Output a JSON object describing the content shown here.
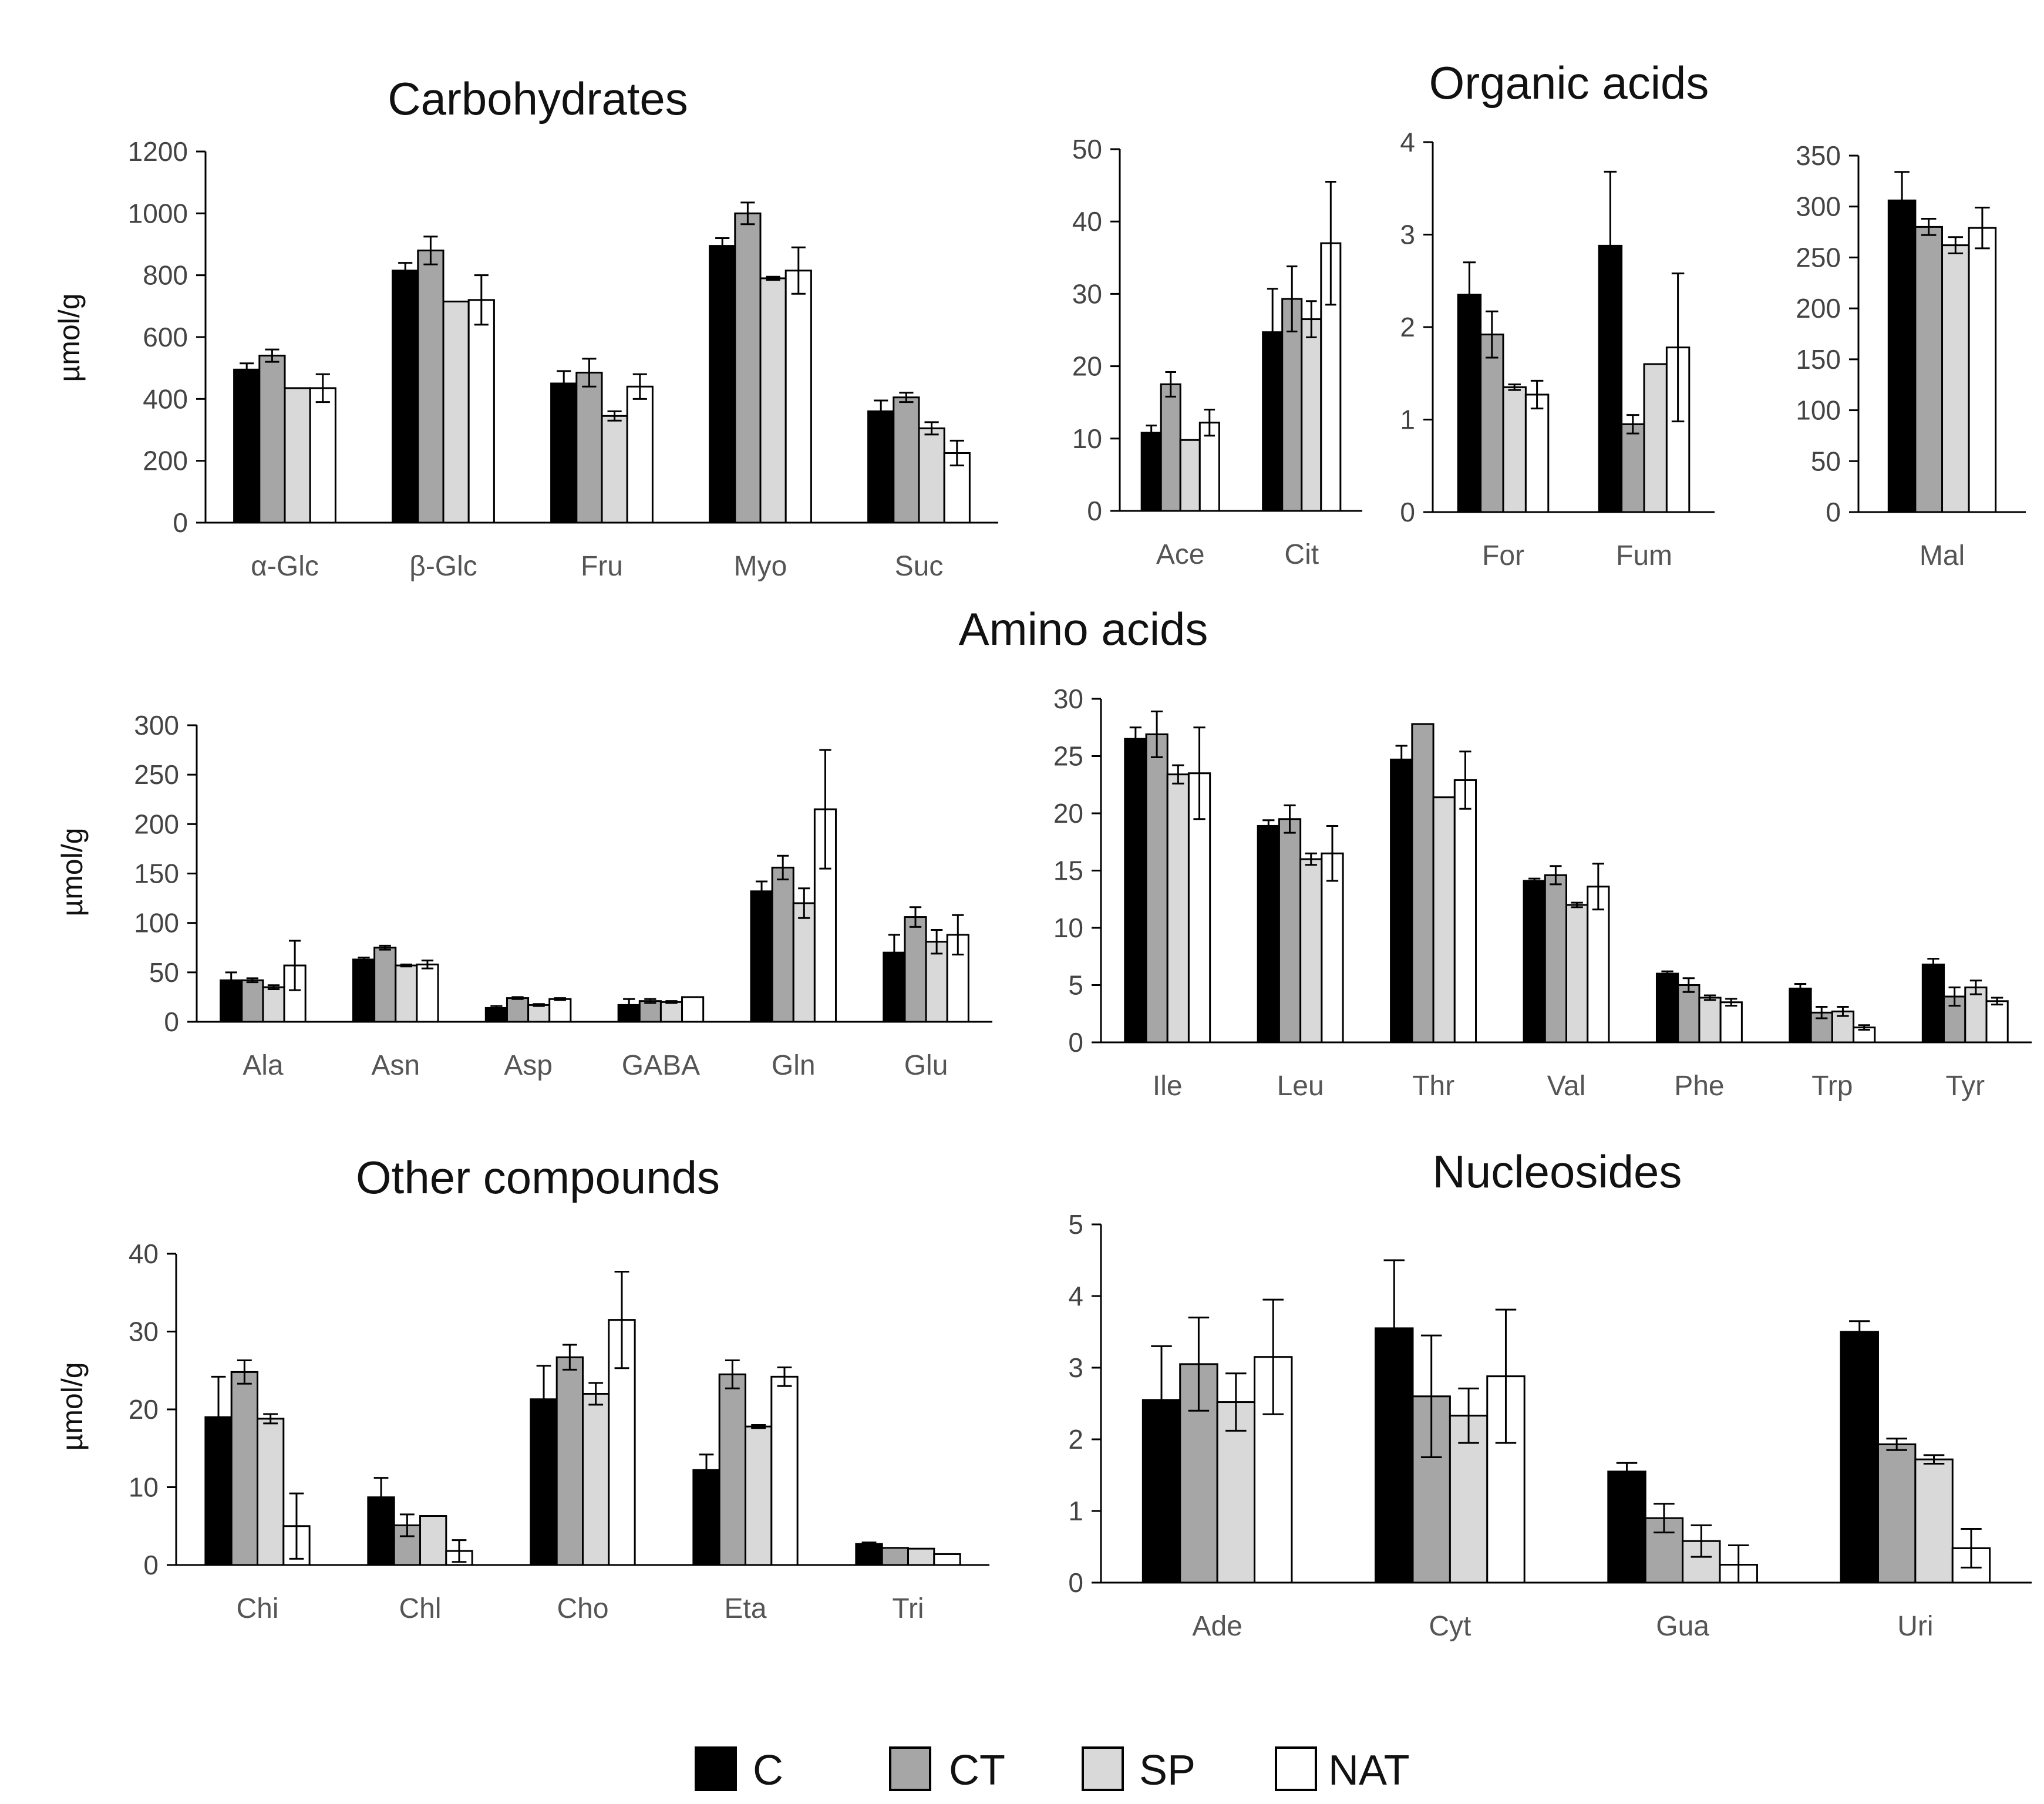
{
  "series_styles": [
    {
      "name": "C",
      "fill": "#000000"
    },
    {
      "name": "CT",
      "fill": "#a6a6a6"
    },
    {
      "name": "SP",
      "fill": "#d9d9d9"
    },
    {
      "name": "NAT",
      "fill": "#ffffff"
    }
  ],
  "section_titles": {
    "amino_acids": "Amino acids"
  },
  "legend": {
    "items": [
      "C",
      "CT",
      "SP",
      "NAT"
    ]
  },
  "chart_data": [
    {
      "id": "carbohydrates",
      "type": "bar",
      "title": "Carbohydrates",
      "ylabel": "µmol/g",
      "ylim": [
        0,
        1200
      ],
      "yticks": [
        0,
        200,
        400,
        600,
        800,
        1000,
        1200
      ],
      "categories": [
        "α-Glc",
        "β-Glc",
        "Fru",
        "Myo",
        "Suc"
      ],
      "series": [
        {
          "name": "C",
          "values": [
            495,
            815,
            450,
            895,
            360
          ],
          "errors": [
            20,
            25,
            40,
            25,
            35
          ]
        },
        {
          "name": "CT",
          "values": [
            540,
            880,
            485,
            1000,
            405
          ],
          "errors": [
            20,
            45,
            45,
            35,
            15
          ]
        },
        {
          "name": "SP",
          "values": [
            435,
            715,
            345,
            790,
            305
          ],
          "errors": [
            0,
            0,
            15,
            5,
            20
          ]
        },
        {
          "name": "NAT",
          "values": [
            435,
            720,
            440,
            815,
            225
          ],
          "errors": [
            45,
            80,
            40,
            75,
            40
          ]
        }
      ]
    },
    {
      "id": "organic-ace-cit",
      "type": "bar",
      "title": "Organic acids",
      "ylabel": "",
      "ylim": [
        0,
        50
      ],
      "yticks": [
        0,
        10,
        20,
        30,
        40,
        50
      ],
      "categories": [
        "Ace",
        "Cit"
      ],
      "series": [
        {
          "name": "C",
          "values": [
            10.8,
            24.7
          ],
          "errors": [
            1.0,
            6.0
          ]
        },
        {
          "name": "CT",
          "values": [
            17.5,
            29.3
          ],
          "errors": [
            1.7,
            4.5
          ]
        },
        {
          "name": "SP",
          "values": [
            9.8,
            26.5
          ],
          "errors": [
            0,
            2.5
          ]
        },
        {
          "name": "NAT",
          "values": [
            12.2,
            37.0
          ],
          "errors": [
            1.8,
            8.5
          ]
        }
      ]
    },
    {
      "id": "organic-for-fum",
      "type": "bar",
      "title": "",
      "ylabel": "",
      "ylim": [
        0,
        4
      ],
      "yticks": [
        0,
        1,
        2,
        3,
        4
      ],
      "categories": [
        "For",
        "Fum"
      ],
      "series": [
        {
          "name": "C",
          "values": [
            2.35,
            2.88
          ],
          "errors": [
            0.35,
            0.8
          ]
        },
        {
          "name": "CT",
          "values": [
            1.92,
            0.95
          ],
          "errors": [
            0.25,
            0.1
          ]
        },
        {
          "name": "SP",
          "values": [
            1.35,
            1.6
          ],
          "errors": [
            0.03,
            0
          ]
        },
        {
          "name": "NAT",
          "values": [
            1.27,
            1.78
          ],
          "errors": [
            0.15,
            0.8
          ]
        }
      ]
    },
    {
      "id": "organic-mal",
      "type": "bar",
      "title": "",
      "ylabel": "",
      "ylim": [
        0,
        350
      ],
      "yticks": [
        0,
        50,
        100,
        150,
        200,
        250,
        300,
        350
      ],
      "categories": [
        "Mal"
      ],
      "series": [
        {
          "name": "C",
          "values": [
            306
          ],
          "errors": [
            28
          ]
        },
        {
          "name": "CT",
          "values": [
            280
          ],
          "errors": [
            8
          ]
        },
        {
          "name": "SP",
          "values": [
            262
          ],
          "errors": [
            8
          ]
        },
        {
          "name": "NAT",
          "values": [
            279
          ],
          "errors": [
            20
          ]
        }
      ]
    },
    {
      "id": "amino-major",
      "type": "bar",
      "title": "",
      "ylabel": "µmol/g",
      "ylim": [
        0,
        300
      ],
      "yticks": [
        0,
        50,
        100,
        150,
        200,
        250,
        300
      ],
      "categories": [
        "Ala",
        "Asn",
        "Asp",
        "GABA",
        "Gln",
        "Glu"
      ],
      "series": [
        {
          "name": "C",
          "values": [
            42,
            63,
            14,
            17,
            132,
            70
          ],
          "errors": [
            8,
            2,
            2,
            6,
            10,
            18
          ]
        },
        {
          "name": "CT",
          "values": [
            42,
            75,
            24,
            21,
            156,
            106
          ],
          "errors": [
            2,
            2,
            1,
            2,
            12,
            10
          ]
        },
        {
          "name": "SP",
          "values": [
            35,
            57,
            17,
            20,
            120,
            81
          ],
          "errors": [
            2,
            1,
            1,
            1,
            15,
            12
          ]
        },
        {
          "name": "NAT",
          "values": [
            57,
            58,
            23,
            25,
            215,
            88
          ],
          "errors": [
            25,
            4,
            1,
            0,
            60,
            20
          ]
        }
      ]
    },
    {
      "id": "amino-minor",
      "type": "bar",
      "title": "",
      "ylabel": "",
      "ylim": [
        0,
        30
      ],
      "yticks": [
        0,
        5,
        10,
        15,
        20,
        25,
        30
      ],
      "categories": [
        "Ile",
        "Leu",
        "Thr",
        "Val",
        "Phe",
        "Trp",
        "Tyr"
      ],
      "series": [
        {
          "name": "C",
          "values": [
            26.5,
            18.9,
            24.7,
            14.1,
            6.0,
            4.7,
            6.8
          ],
          "errors": [
            1.0,
            0.5,
            1.2,
            0.2,
            0.2,
            0.4,
            0.5
          ]
        },
        {
          "name": "CT",
          "values": [
            26.9,
            19.5,
            27.8,
            14.6,
            5.0,
            2.6,
            4.0
          ],
          "errors": [
            2.0,
            1.2,
            0,
            0.8,
            0.6,
            0.5,
            0.8
          ]
        },
        {
          "name": "SP",
          "values": [
            23.4,
            16.0,
            21.4,
            12.0,
            3.9,
            2.7,
            4.8
          ],
          "errors": [
            0.8,
            0.5,
            0,
            0.2,
            0.2,
            0.4,
            0.6
          ]
        },
        {
          "name": "NAT",
          "values": [
            23.5,
            16.5,
            22.9,
            13.6,
            3.5,
            1.3,
            3.6
          ],
          "errors": [
            4.0,
            2.4,
            2.5,
            2.0,
            0.3,
            0.2,
            0.3
          ]
        }
      ]
    },
    {
      "id": "other-compounds",
      "type": "bar",
      "title": "Other compounds",
      "ylabel": "µmol/g",
      "ylim": [
        0,
        40
      ],
      "yticks": [
        0,
        10,
        20,
        30,
        40
      ],
      "categories": [
        "Chi",
        "Chl",
        "Cho",
        "Eta",
        "Tri"
      ],
      "series": [
        {
          "name": "C",
          "values": [
            19.0,
            8.7,
            21.3,
            12.2,
            2.7
          ],
          "errors": [
            5.2,
            2.5,
            4.3,
            2.0,
            0.2
          ]
        },
        {
          "name": "CT",
          "values": [
            24.8,
            5.1,
            26.7,
            24.5,
            2.2
          ],
          "errors": [
            1.5,
            1.4,
            1.6,
            1.8,
            0
          ]
        },
        {
          "name": "SP",
          "values": [
            18.8,
            6.3,
            22.0,
            17.8,
            2.1
          ],
          "errors": [
            0.6,
            0,
            1.4,
            0.2,
            0
          ]
        },
        {
          "name": "NAT",
          "values": [
            5.0,
            1.8,
            31.5,
            24.2,
            1.4
          ],
          "errors": [
            4.2,
            1.4,
            6.2,
            1.2,
            0
          ]
        }
      ]
    },
    {
      "id": "nucleosides",
      "type": "bar",
      "title": "Nucleosides",
      "ylabel": "",
      "ylim": [
        0,
        5
      ],
      "yticks": [
        0,
        1,
        2,
        3,
        4,
        5
      ],
      "categories": [
        "Ade",
        "Cyt",
        "Gua",
        "Uri"
      ],
      "series": [
        {
          "name": "C",
          "values": [
            2.55,
            3.55,
            1.55,
            3.5
          ],
          "errors": [
            0.75,
            0.95,
            0.12,
            0.15
          ]
        },
        {
          "name": "CT",
          "values": [
            3.05,
            2.6,
            0.9,
            1.93
          ],
          "errors": [
            0.65,
            0.85,
            0.2,
            0.08
          ]
        },
        {
          "name": "SP",
          "values": [
            2.52,
            2.33,
            0.58,
            1.72
          ],
          "errors": [
            0.4,
            0.38,
            0.22,
            0.06
          ]
        },
        {
          "name": "NAT",
          "values": [
            3.15,
            2.88,
            0.25,
            0.48
          ],
          "errors": [
            0.8,
            0.93,
            0.27,
            0.27
          ]
        }
      ]
    }
  ]
}
